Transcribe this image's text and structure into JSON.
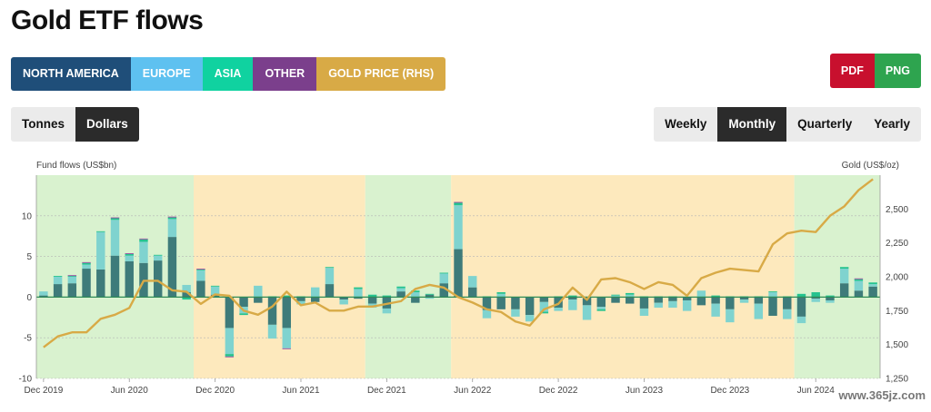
{
  "title": "Gold ETF flows",
  "legend": [
    {
      "label": "NORTH AMERICA",
      "color": "#1f4e79"
    },
    {
      "label": "EUROPE",
      "color": "#5ec1f0"
    },
    {
      "label": "ASIA",
      "color": "#10d2a0"
    },
    {
      "label": "OTHER",
      "color": "#7b3f8c"
    },
    {
      "label": "GOLD PRICE (RHS)",
      "color": "#d8aa46"
    }
  ],
  "export": [
    {
      "label": "PDF",
      "color": "#c8102e"
    },
    {
      "label": "PNG",
      "color": "#2ea44f"
    }
  ],
  "units": [
    {
      "label": "Tonnes",
      "active": false
    },
    {
      "label": "Dollars",
      "active": true
    }
  ],
  "frequency": [
    {
      "label": "Weekly",
      "active": false
    },
    {
      "label": "Monthly",
      "active": true
    },
    {
      "label": "Quarterly",
      "active": false
    },
    {
      "label": "Yearly",
      "active": false
    }
  ],
  "watermark": "www.365jz.com",
  "chart_data": {
    "type": "bar",
    "stacked": true,
    "ylabel": "Fund flows (US$bn)",
    "ylabel_right": "Gold (US$/oz)",
    "ylim": [
      -10,
      15
    ],
    "y_ticks": [
      -10,
      -5,
      0,
      5,
      10
    ],
    "ylim_right": [
      1250,
      2750
    ],
    "y_ticks_right": [
      "1,250",
      "1,500",
      "1,750",
      "2,000",
      "2,250",
      "2,500"
    ],
    "y_ticks_right_values": [
      1250,
      1500,
      1750,
      2000,
      2250,
      2500
    ],
    "x_tick_labels": [
      "Dec 2019",
      "Jun 2020",
      "Dec 2020",
      "Jun 2021",
      "Dec 2021",
      "Jun 2022",
      "Dec 2022",
      "Jun 2023",
      "Dec 2023",
      "Jun 2024"
    ],
    "x_tick_index": [
      0,
      6,
      12,
      18,
      24,
      30,
      36,
      42,
      48,
      54
    ],
    "categories": [
      "2019-12",
      "2020-01",
      "2020-02",
      "2020-03",
      "2020-04",
      "2020-05",
      "2020-06",
      "2020-07",
      "2020-08",
      "2020-09",
      "2020-10",
      "2020-11",
      "2020-12",
      "2021-01",
      "2021-02",
      "2021-03",
      "2021-04",
      "2021-05",
      "2021-06",
      "2021-07",
      "2021-08",
      "2021-09",
      "2021-10",
      "2021-11",
      "2021-12",
      "2022-01",
      "2022-02",
      "2022-03",
      "2022-04",
      "2022-05",
      "2022-06",
      "2022-07",
      "2022-08",
      "2022-09",
      "2022-10",
      "2022-11",
      "2022-12",
      "2023-01",
      "2023-02",
      "2023-03",
      "2023-04",
      "2023-05",
      "2023-06",
      "2023-07",
      "2023-08",
      "2023-09",
      "2023-10",
      "2023-11",
      "2023-12",
      "2024-01",
      "2024-02",
      "2024-03",
      "2024-04",
      "2024-05",
      "2024-06",
      "2024-07",
      "2024-08",
      "2024-09",
      "2024-10"
    ],
    "background_bands": [
      {
        "from": 0,
        "to": 11,
        "color": "#d9f2cf"
      },
      {
        "from": 11,
        "to": 23,
        "color": "#fde9bd"
      },
      {
        "from": 23,
        "to": 29,
        "color": "#d9f2cf"
      },
      {
        "from": 29,
        "to": 53,
        "color": "#fde9bd"
      },
      {
        "from": 53,
        "to": 59,
        "color": "#d9f2cf"
      }
    ],
    "series": [
      {
        "name": "NORTH AMERICA",
        "color": "#3e7b7a",
        "values": [
          0.2,
          1.6,
          1.7,
          3.5,
          3.4,
          5.1,
          4.4,
          4.2,
          4.5,
          7.4,
          0.6,
          2.0,
          0.3,
          -3.8,
          -1.2,
          -0.7,
          -3.4,
          -3.8,
          -0.5,
          -0.6,
          1.6,
          -0.3,
          -0.2,
          -0.8,
          -1.4,
          0.7,
          -0.7,
          0.3,
          1.7,
          5.9,
          1.2,
          -1.6,
          -1.5,
          -1.5,
          -2.2,
          -0.6,
          -1.3,
          -0.3,
          -1.0,
          -1.2,
          -0.7,
          -0.8,
          -1.4,
          -0.7,
          -0.5,
          -0.4,
          -1.0,
          -0.8,
          -1.5,
          -0.3,
          -0.8,
          -2.3,
          -1.5,
          -2.4,
          -0.2,
          -0.4,
          1.7,
          0.8,
          1.3
        ]
      },
      {
        "name": "EUROPE",
        "color": "#7fd3cf",
        "values": [
          0.5,
          0.9,
          0.8,
          0.5,
          4.6,
          4.4,
          0.7,
          2.6,
          0.6,
          2.2,
          0.9,
          1.3,
          1.0,
          -3.2,
          -0.8,
          1.4,
          -1.7,
          -2.5,
          -0.4,
          1.2,
          2.0,
          -0.6,
          1.0,
          -0.5,
          -0.6,
          0.4,
          0.6,
          -0.2,
          1.2,
          5.4,
          1.4,
          -1.0,
          0.4,
          -0.9,
          -0.8,
          -1.2,
          -0.4,
          -1.3,
          -1.8,
          -0.3,
          0.2,
          0.3,
          -0.9,
          -0.6,
          -0.8,
          -1.3,
          0.8,
          -1.6,
          -1.6,
          -0.4,
          -1.9,
          0.6,
          -1.2,
          -0.8,
          -0.4,
          -0.3,
          1.8,
          1.2,
          0.3
        ]
      },
      {
        "name": "ASIA",
        "color": "#25c38f",
        "values": [
          0.0,
          0.1,
          0.1,
          0.2,
          0.1,
          0.2,
          0.2,
          0.3,
          0.1,
          0.2,
          -0.3,
          0.1,
          0.1,
          -0.3,
          -0.2,
          0.0,
          0.1,
          0.2,
          0.1,
          0.0,
          0.1,
          0.0,
          0.2,
          0.3,
          0.2,
          0.2,
          0.2,
          0.1,
          0.1,
          0.3,
          0.0,
          0.1,
          0.2,
          0.0,
          0.0,
          -0.2,
          0.1,
          0.2,
          0.0,
          -0.2,
          0.1,
          0.2,
          0.1,
          0.1,
          0.1,
          0.0,
          0.0,
          0.2,
          0.1,
          0.1,
          0.1,
          0.1,
          0.1,
          0.4,
          0.6,
          0.2,
          0.2,
          0.2,
          0.2
        ]
      },
      {
        "name": "OTHER",
        "color": "#9c4aa0",
        "values": [
          0.0,
          0.0,
          0.1,
          0.1,
          0.0,
          0.1,
          0.1,
          0.1,
          0.0,
          0.1,
          0.0,
          0.1,
          0.0,
          -0.1,
          0.0,
          0.0,
          0.0,
          -0.1,
          0.0,
          0.0,
          0.0,
          0.0,
          0.0,
          0.0,
          0.0,
          0.0,
          0.0,
          0.0,
          0.0,
          0.1,
          0.0,
          0.0,
          0.0,
          0.0,
          0.0,
          0.0,
          0.0,
          0.0,
          0.0,
          0.0,
          0.0,
          0.0,
          0.0,
          0.0,
          0.0,
          0.0,
          0.0,
          0.0,
          0.0,
          0.0,
          0.0,
          0.0,
          0.0,
          0.0,
          0.0,
          0.0,
          0.0,
          0.1,
          0.0
        ]
      }
    ],
    "gold_price": {
      "name": "GOLD PRICE (RHS)",
      "color": "#d8aa46",
      "values": [
        1480,
        1560,
        1590,
        1590,
        1690,
        1720,
        1770,
        1970,
        1970,
        1900,
        1890,
        1800,
        1870,
        1860,
        1750,
        1720,
        1780,
        1890,
        1790,
        1810,
        1750,
        1750,
        1780,
        1780,
        1800,
        1820,
        1910,
        1940,
        1920,
        1850,
        1810,
        1760,
        1740,
        1670,
        1640,
        1760,
        1800,
        1920,
        1830,
        1980,
        1990,
        1960,
        1910,
        1960,
        1940,
        1860,
        1990,
        2030,
        2060,
        2050,
        2040,
        2240,
        2320,
        2340,
        2330,
        2450,
        2520,
        2640,
        2720
      ]
    }
  }
}
